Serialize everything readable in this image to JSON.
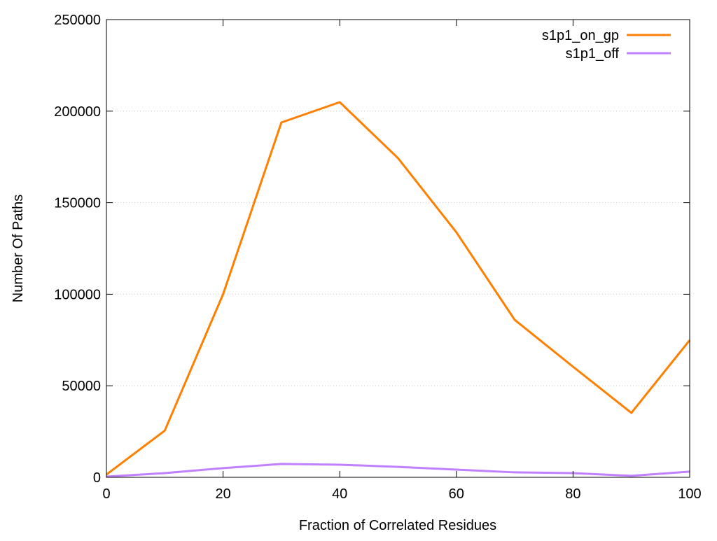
{
  "chart_data": {
    "type": "line",
    "title": "",
    "xlabel": "Fraction of Correlated Residues",
    "ylabel": "Number Of Paths",
    "xlim": [
      0,
      100
    ],
    "ylim": [
      0,
      250000
    ],
    "xticks": [
      0,
      20,
      40,
      60,
      80,
      100
    ],
    "yticks": [
      0,
      50000,
      100000,
      150000,
      200000,
      250000
    ],
    "grid": "horizontal dotted",
    "legend_position": "top-right",
    "x": [
      0,
      10,
      20,
      30,
      40,
      50,
      60,
      70,
      80,
      90,
      100
    ],
    "series": [
      {
        "name": "s1p1_on_gp",
        "color": "#ff7f00",
        "values": [
          1500,
          25500,
          100000,
          193800,
          204900,
          174300,
          133800,
          86000,
          60400,
          35200,
          74900
        ]
      },
      {
        "name": "s1p1_off",
        "color": "#c080ff",
        "values": [
          400,
          2300,
          5000,
          7300,
          6900,
          5700,
          4200,
          2700,
          2300,
          800,
          3100
        ]
      }
    ]
  }
}
